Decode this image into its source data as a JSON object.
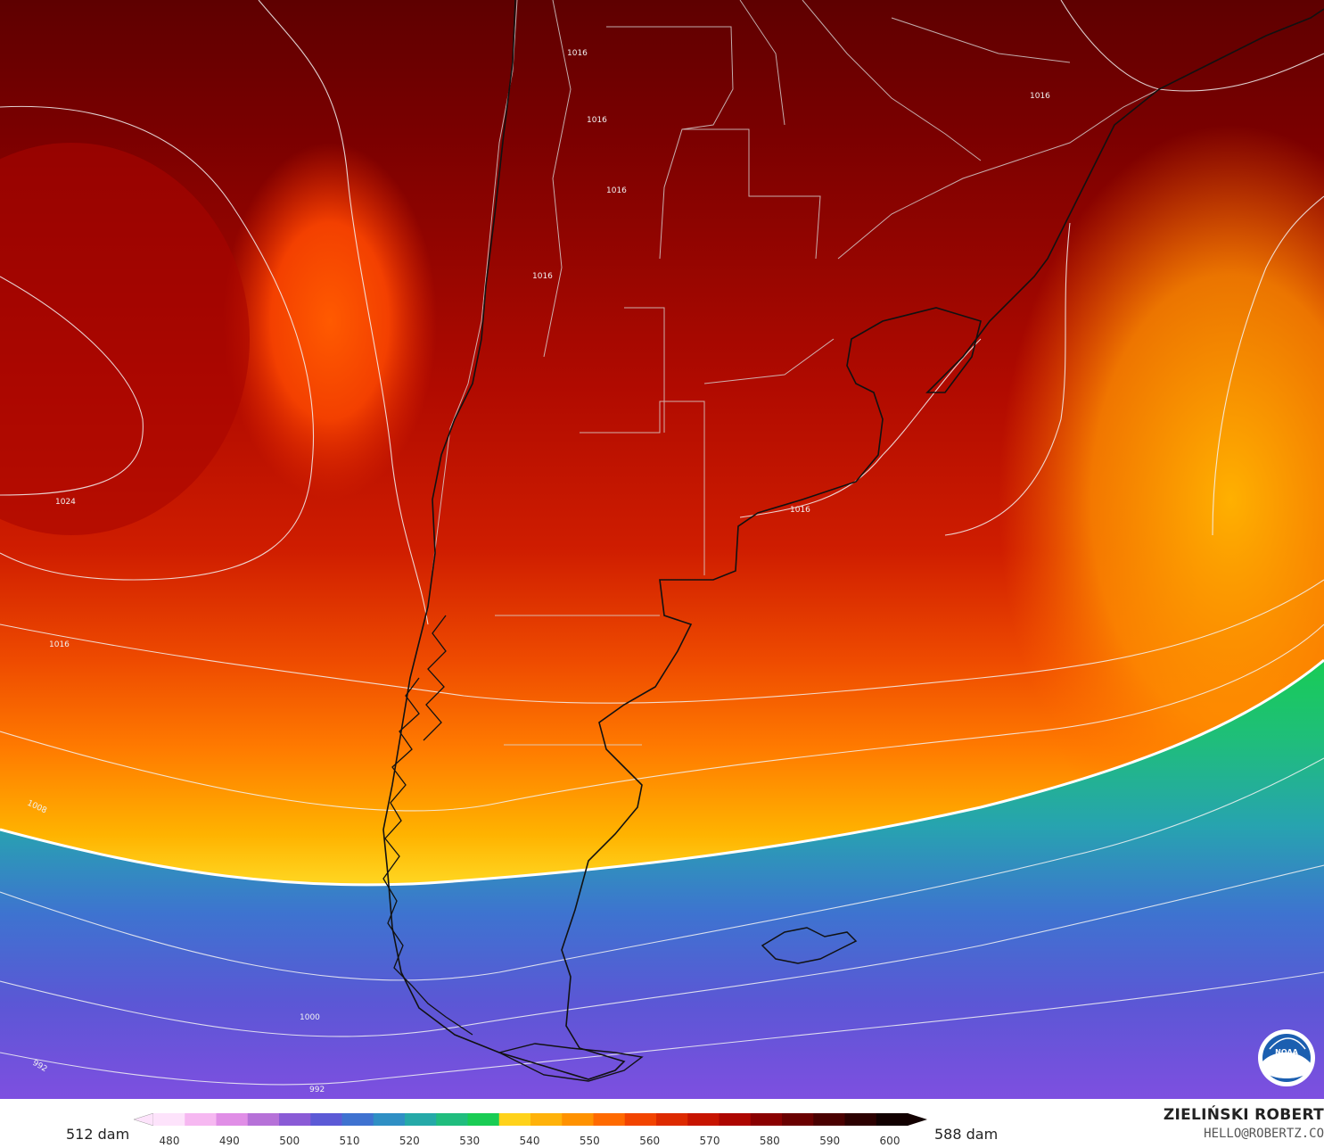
{
  "map": {
    "isobar_labels": [
      "1016",
      "1016",
      "1016",
      "1016",
      "1016",
      "1016",
      "1024",
      "1016",
      "1008",
      "1000",
      "992",
      "992"
    ]
  },
  "legend": {
    "min_label": "512 dam",
    "max_label": "588 dam",
    "ticks": [
      "480",
      "490",
      "500",
      "510",
      "520",
      "530",
      "540",
      "550",
      "560",
      "570",
      "580",
      "590",
      "600"
    ]
  },
  "credits": {
    "author": "ZIELIŃSKI ROBERT",
    "email": "HELLO@ROBERTZ.CO"
  },
  "logo": {
    "icon": "noaa-logo-icon",
    "text": "NOAA"
  },
  "colors": {
    "scale": [
      "#fde3fb",
      "#f6b8f1",
      "#e08ee6",
      "#b671d8",
      "#8a5bd6",
      "#5c5ad6",
      "#3f72d0",
      "#2f8fc4",
      "#25a9a8",
      "#20bd7e",
      "#19cc54",
      "#ffd21a",
      "#ffb20a",
      "#ff9200",
      "#ff6a00",
      "#f24400",
      "#dd2a00",
      "#c71400",
      "#ad0600",
      "#8a0000",
      "#6a0000",
      "#4a0000",
      "#2c0000",
      "#120000"
    ]
  }
}
